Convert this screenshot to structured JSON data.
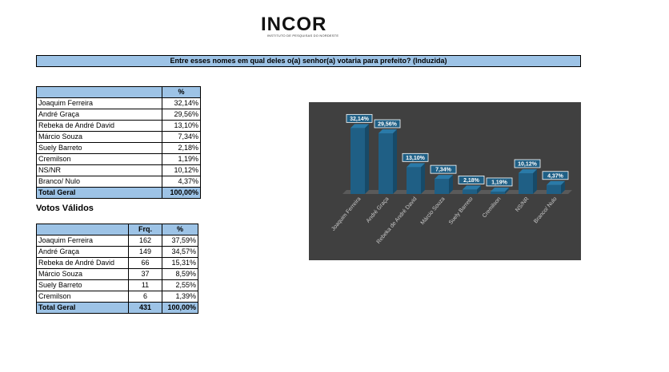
{
  "logo": {
    "text": "INCOR",
    "subtitle": "INSTITUTO DE PESQUISAS DO NORDESTE"
  },
  "question": "Entre esses nomes em qual deles o(a) senhor(a) votaria para prefeito? (Induzida)",
  "table1": {
    "header": [
      "",
      "%"
    ],
    "rows": [
      [
        "Joaquim Ferreira",
        "32,14%"
      ],
      [
        "André Graça",
        "29,56%"
      ],
      [
        "Rebeka de André David",
        "13,10%"
      ],
      [
        "Márcio Souza",
        "7,34%"
      ],
      [
        "Suely Barreto",
        "2,18%"
      ],
      [
        "Cremilson",
        "1,19%"
      ],
      [
        "NS/NR",
        "10,12%"
      ],
      [
        "Branco/ Nulo",
        "4,37%"
      ]
    ],
    "total": [
      "Total Geral",
      "100,00%"
    ]
  },
  "valid_votes_title": "Votos Válidos",
  "table2": {
    "header": [
      "",
      "Frq.",
      "%"
    ],
    "rows": [
      [
        "Joaquim Ferreira",
        "162",
        "37,59%"
      ],
      [
        "André Graça",
        "149",
        "34,57%"
      ],
      [
        "Rebeka de André David",
        "66",
        "15,31%"
      ],
      [
        "Márcio Souza",
        "37",
        "8,59%"
      ],
      [
        "Suely Barreto",
        "11",
        "2,55%"
      ],
      [
        "Cremilson",
        "6",
        "1,39%"
      ]
    ],
    "total": [
      "Total Geral",
      "431",
      "100,00%"
    ]
  },
  "colors": {
    "bar": "#1f5f85",
    "bar_top": "#2a7aa8",
    "bar_side": "#174a68",
    "chart_bg": "#404040",
    "header_bg": "#9dc3e6"
  },
  "chart_data": {
    "type": "bar",
    "categories": [
      "Joaquim Ferreira",
      "André Graça",
      "Rebeka de André David",
      "Márcio Souza",
      "Suely Barreto",
      "Cremilson",
      "NS/NR",
      "Branco/ Nulo"
    ],
    "values": [
      32.14,
      29.56,
      13.1,
      7.34,
      2.18,
      1.19,
      10.12,
      4.37
    ],
    "data_labels": [
      "32,14%",
      "29,56%",
      "13,10%",
      "7,34%",
      "2,18%",
      "1,19%",
      "10,12%",
      "4,37%"
    ],
    "ylim": [
      0,
      35
    ],
    "grid": false,
    "legend": "none"
  }
}
